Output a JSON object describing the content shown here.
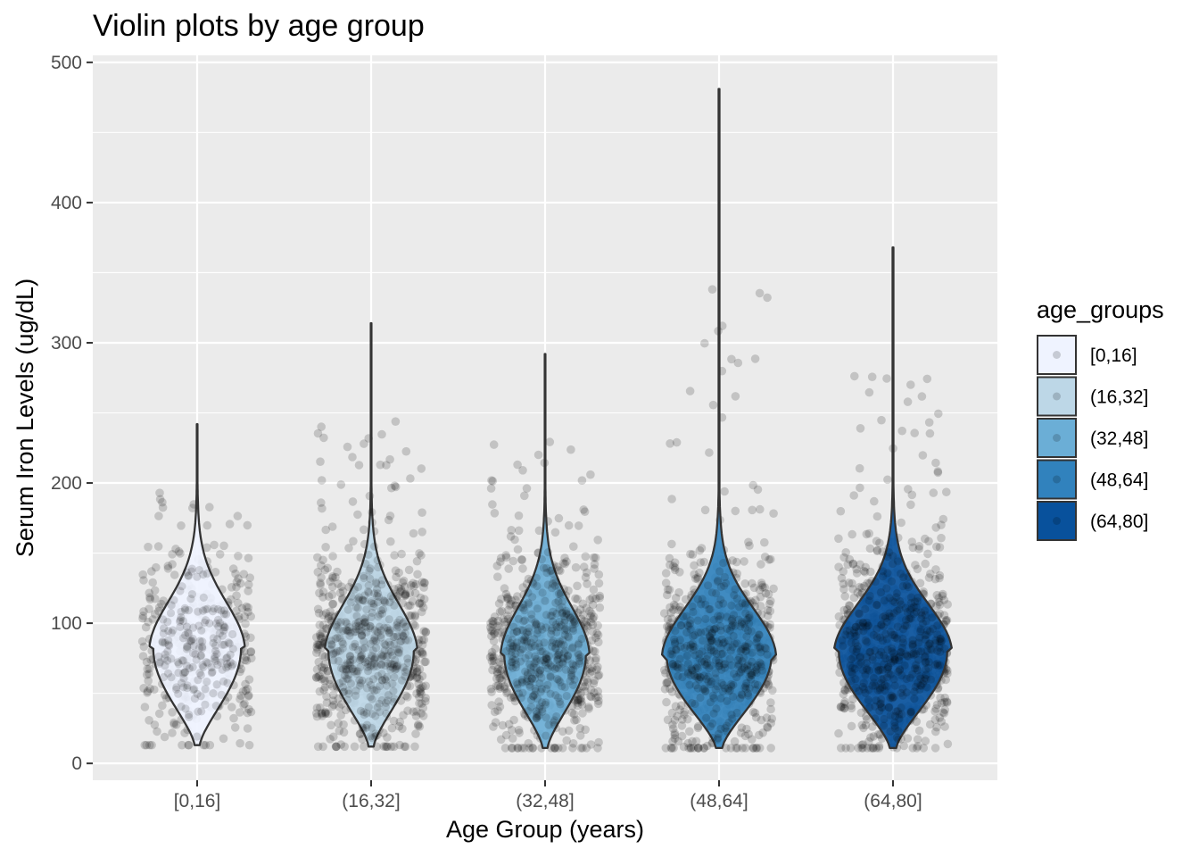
{
  "chart_data": {
    "type": "violin",
    "title": "Violin plots by age group",
    "xlabel": "Age Group (years)",
    "ylabel": "Serum Iron Levels (ug/dL)",
    "ylim": [
      -12,
      505
    ],
    "y_ticks": [
      0,
      100,
      200,
      300,
      400,
      500
    ],
    "grid": true,
    "legend": {
      "title": "age_groups",
      "placement": "right"
    },
    "categories": [
      "[0,16]",
      "(16,32]",
      "(32,48]",
      "(48,64]",
      "(64,80]"
    ],
    "series": [
      {
        "category": "[0,16]",
        "color": "#EFF3FF",
        "min": 13,
        "max": 242,
        "mode": 82,
        "max_width_scale": 0.72,
        "jitter_count": 360
      },
      {
        "category": "(16,32]",
        "color": "#BDD7E7",
        "min": 12,
        "max": 314,
        "mode": 80,
        "max_width_scale": 0.7,
        "jitter_count": 640
      },
      {
        "category": "(32,48]",
        "color": "#6BAED6",
        "min": 11,
        "max": 292,
        "mode": 78,
        "max_width_scale": 0.67,
        "jitter_count": 600
      },
      {
        "category": "(48,64]",
        "color": "#3182BD",
        "min": 11,
        "max": 481,
        "mode": 77,
        "max_width_scale": 0.86,
        "jitter_count": 620
      },
      {
        "category": "(64,80]",
        "color": "#08519C",
        "min": 11,
        "max": 368,
        "mode": 80,
        "max_width_scale": 0.89,
        "jitter_count": 660
      }
    ],
    "point_color": "#000000",
    "outline_color": "#333333"
  }
}
